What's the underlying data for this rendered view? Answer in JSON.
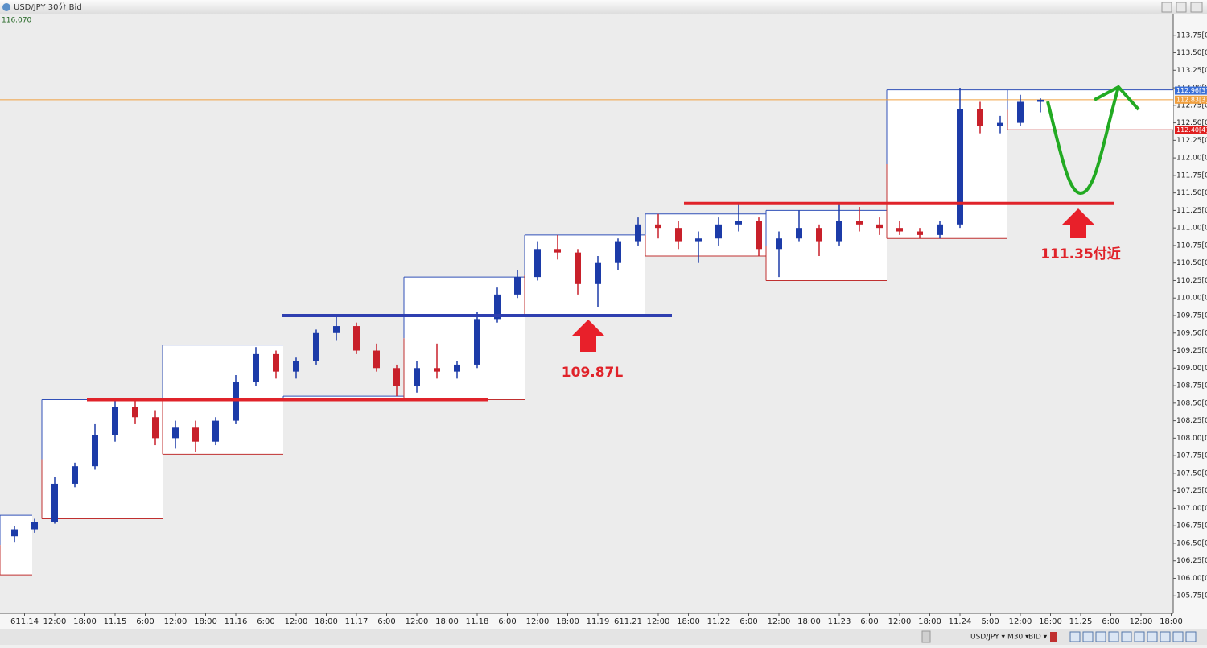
{
  "window": {
    "title": "USD/JPY 30分 Bid"
  },
  "chart_data": {
    "type": "candlestick",
    "corner_value": "116.070",
    "up_color": "#1c3ba8",
    "down_color": "#c8202a",
    "open": [
      106.6,
      106.7,
      106.8,
      107.35,
      107.6,
      108.05,
      108.45,
      108.3,
      108.0,
      108.15,
      107.95,
      108.25,
      108.8,
      109.2,
      108.95,
      109.1,
      109.5,
      109.6,
      109.25,
      109.0,
      108.75,
      109.0,
      108.95,
      109.05,
      109.7,
      110.05,
      110.3,
      110.7,
      110.65,
      110.2,
      110.5,
      110.8,
      111.05,
      111.0,
      110.8,
      110.85,
      111.05,
      111.1,
      110.7,
      110.85,
      111.0,
      110.8,
      111.1,
      111.05,
      111.0,
      110.95,
      110.9,
      111.05,
      112.7,
      112.45,
      112.5,
      112.8
    ],
    "high": [
      106.75,
      106.85,
      107.45,
      107.65,
      108.2,
      108.55,
      108.55,
      108.4,
      108.25,
      108.25,
      108.3,
      108.9,
      109.3,
      109.25,
      109.15,
      109.55,
      109.75,
      109.65,
      109.35,
      109.05,
      109.1,
      109.35,
      109.1,
      109.8,
      110.15,
      110.4,
      110.8,
      110.9,
      110.7,
      110.6,
      110.85,
      111.15,
      111.2,
      111.1,
      110.95,
      111.15,
      111.35,
      111.15,
      110.95,
      111.25,
      111.05,
      111.35,
      111.3,
      111.15,
      111.1,
      111.0,
      111.1,
      113.0,
      112.8,
      112.6,
      112.9,
      112.85
    ],
    "low": [
      106.52,
      106.65,
      106.78,
      107.3,
      107.55,
      107.95,
      108.2,
      107.9,
      107.85,
      107.8,
      107.9,
      108.2,
      108.75,
      108.85,
      108.85,
      109.05,
      109.4,
      109.2,
      108.95,
      108.6,
      108.65,
      108.85,
      108.85,
      109.0,
      109.65,
      110.0,
      110.25,
      110.55,
      110.05,
      109.87,
      110.4,
      110.75,
      110.85,
      110.7,
      110.5,
      110.75,
      110.95,
      110.6,
      110.3,
      110.8,
      110.6,
      110.75,
      110.95,
      110.9,
      110.9,
      110.85,
      110.85,
      111.0,
      112.35,
      112.35,
      112.45,
      112.65
    ],
    "close": [
      106.7,
      106.8,
      107.35,
      107.6,
      108.05,
      108.45,
      108.3,
      108.0,
      108.15,
      107.95,
      108.25,
      108.8,
      109.2,
      108.95,
      109.1,
      109.5,
      109.6,
      109.25,
      109.0,
      108.75,
      109.0,
      108.95,
      109.05,
      109.7,
      110.05,
      110.3,
      110.7,
      110.65,
      110.2,
      110.5,
      110.8,
      111.05,
      111.0,
      110.8,
      110.85,
      111.05,
      111.1,
      110.7,
      110.85,
      111.0,
      110.8,
      111.1,
      111.05,
      111.0,
      110.95,
      110.9,
      111.05,
      112.7,
      112.45,
      112.5,
      112.8,
      112.83
    ],
    "x_labels": [
      "611.14",
      "12:00",
      "18:00",
      "11.15",
      "6:00",
      "12:00",
      "18:00",
      "11.16",
      "6:00",
      "12:00",
      "18:00",
      "11.17",
      "6:00",
      "12:00",
      "18:00",
      "11.18",
      "6:00",
      "12:00",
      "18:00",
      "11.19",
      "611.21",
      "12:00",
      "18:00",
      "11.22",
      "6:00",
      "12:00",
      "18:00",
      "11.23",
      "6:00",
      "12:00",
      "18:00",
      "11.24",
      "6:00",
      "12:00",
      "18:00",
      "11.25",
      "6:00",
      "12:00",
      "18:00"
    ],
    "ylim": [
      105.5,
      114.0
    ],
    "yticks": [
      {
        "value": 105.75,
        "label": "105.75[0"
      },
      {
        "value": 106.0,
        "label": "106.00[0"
      },
      {
        "value": 106.25,
        "label": "106.25[0"
      },
      {
        "value": 106.5,
        "label": "106.50[0"
      },
      {
        "value": 106.75,
        "label": "106.75[0"
      },
      {
        "value": 107.0,
        "label": "107.00[0"
      },
      {
        "value": 107.25,
        "label": "107.25[0"
      },
      {
        "value": 107.5,
        "label": "107.50[0"
      },
      {
        "value": 107.75,
        "label": "107.75[0"
      },
      {
        "value": 108.0,
        "label": "108.00[0"
      },
      {
        "value": 108.25,
        "label": "108.25[0"
      },
      {
        "value": 108.5,
        "label": "108.50[0"
      },
      {
        "value": 108.75,
        "label": "108.75[0"
      },
      {
        "value": 109.0,
        "label": "109.00[0"
      },
      {
        "value": 109.25,
        "label": "109.25[0"
      },
      {
        "value": 109.5,
        "label": "109.50[0"
      },
      {
        "value": 109.75,
        "label": "109.75[0"
      },
      {
        "value": 110.0,
        "label": "110.00[0"
      },
      {
        "value": 110.25,
        "label": "110.25[0"
      },
      {
        "value": 110.5,
        "label": "110.50[0"
      },
      {
        "value": 110.75,
        "label": "110.75[0"
      },
      {
        "value": 111.0,
        "label": "111.00[0"
      },
      {
        "value": 111.25,
        "label": "111.25[0"
      },
      {
        "value": 111.5,
        "label": "111.50[0"
      },
      {
        "value": 111.75,
        "label": "111.75[0"
      },
      {
        "value": 112.0,
        "label": "112.00[0"
      },
      {
        "value": 112.25,
        "label": "112.25[0"
      },
      {
        "value": 112.5,
        "label": "112.50[0"
      },
      {
        "value": 112.75,
        "label": "112.75[0"
      },
      {
        "value": 113.0,
        "label": "113.00[0"
      },
      {
        "value": 113.25,
        "label": "113.25[0"
      },
      {
        "value": 113.5,
        "label": "113.50[0"
      },
      {
        "value": 113.75,
        "label": "113.75[0"
      }
    ],
    "ranges": [
      {
        "high": 106.9,
        "low": 106.05
      },
      {
        "high": 108.55,
        "low": 106.85
      },
      {
        "high": 109.33,
        "low": 107.77
      },
      {
        "high": 108.6,
        "low": 108.55
      },
      {
        "high": 110.3,
        "low": 108.55
      },
      {
        "high": 110.9,
        "low": 109.75
      },
      {
        "high": 111.2,
        "low": 110.6
      },
      {
        "high": 111.25,
        "low": 110.25
      },
      {
        "high": 112.97,
        "low": 110.85
      },
      {
        "high": 112.97,
        "low": 112.4
      }
    ],
    "range_high_color": "#3050b8",
    "range_low_color": "#c03030",
    "levels": [
      {
        "value": 108.55,
        "color": "#e0232a"
      },
      {
        "value": 109.75,
        "color": "#2f3fb0"
      },
      {
        "value": 111.35,
        "color": "#e0232a"
      }
    ],
    "current_price": 112.83,
    "current_color": "#f0a040",
    "price_tags": [
      {
        "value": 112.96,
        "label": "112.96[3]",
        "color": "#3a6fd8"
      },
      {
        "value": 112.83,
        "label": "112.83[3]",
        "color": "#f0a040"
      },
      {
        "value": 112.4,
        "label": "112.40[4]",
        "color": "#e02020"
      }
    ],
    "annotations": [
      "109.87L",
      "111.35付近"
    ]
  },
  "toolbar": {
    "symbol": "USD/JPY ▾",
    "timeframe": "M30 ▾",
    "side": "BID ▾"
  }
}
